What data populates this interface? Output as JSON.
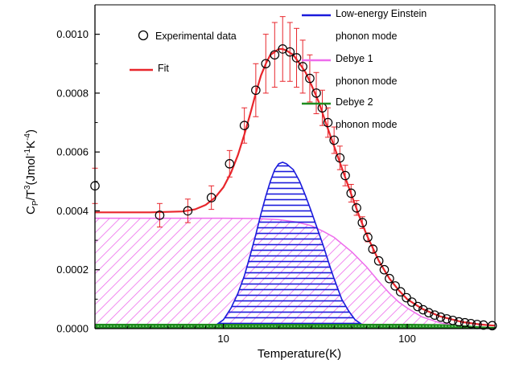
{
  "chart_data": {
    "type": "line",
    "xlabel": "Temperature(K)",
    "ylabel_parts": [
      "C",
      "P",
      "/T",
      "3",
      "(Jmol",
      "-1",
      "K",
      "-4",
      ")"
    ],
    "x_scale": "log",
    "xlim": [
      2,
      300
    ],
    "ylim": [
      0,
      0.0011
    ],
    "x_ticks": [
      {
        "value": 10,
        "label": "10"
      },
      {
        "value": 100,
        "label": "100"
      }
    ],
    "y_ticks": [
      {
        "value": 0.0,
        "label": "0.0000"
      },
      {
        "value": 0.0002,
        "label": "0.0002"
      },
      {
        "value": 0.0004,
        "label": "0.0004"
      },
      {
        "value": 0.0006,
        "label": "0.0006"
      },
      {
        "value": 0.0008,
        "label": "0.0008"
      },
      {
        "value": 0.001,
        "label": "0.0010"
      }
    ],
    "legend_left": [
      {
        "label": "Experimental data",
        "marker": "open-circle"
      },
      {
        "label": "Fit",
        "marker": "line",
        "color": "#e8262c"
      }
    ],
    "legend_right": [
      {
        "line1": "Low-energy Einstein",
        "line2": "phonon mode",
        "color": "#1a1adc"
      },
      {
        "line1": "Debye 1",
        "line2": "phonon mode",
        "color": "#ee6cec"
      },
      {
        "line1": "Debye 2",
        "line2": "phonon mode",
        "color": "#1f8c1f"
      }
    ],
    "colors": {
      "fit": "#e8262c",
      "einstein": "#1a1adc",
      "debye1": "#ee6cec",
      "debye2": "#1f8c1f",
      "data": "#000000"
    },
    "series": [
      {
        "name": "Experimental data",
        "kind": "scatter",
        "points": [
          [
            2.0,
            0.000485,
            6e-05
          ],
          [
            4.5,
            0.000385,
            4e-05
          ],
          [
            6.4,
            0.0004,
            4e-05
          ],
          [
            8.6,
            0.000445,
            4e-05
          ],
          [
            10.8,
            0.00056,
            4.5e-05
          ],
          [
            13.0,
            0.00069,
            6e-05
          ],
          [
            15.0,
            0.00081,
            9e-05
          ],
          [
            17.0,
            0.0009,
            0.0001
          ],
          [
            19.0,
            0.00093,
            0.00011
          ],
          [
            21.0,
            0.00095,
            0.00011
          ],
          [
            23.0,
            0.00094,
            0.0001
          ],
          [
            25.0,
            0.00092,
            0.0001
          ],
          [
            27.0,
            0.00089,
            9e-05
          ],
          [
            29.5,
            0.00085,
            8e-05
          ],
          [
            32.0,
            0.0008,
            7e-05
          ],
          [
            34.5,
            0.00075,
            6e-05
          ],
          [
            37.0,
            0.0007,
            5e-05
          ],
          [
            40.0,
            0.00064,
            4.5e-05
          ],
          [
            43.0,
            0.00058,
            4e-05
          ],
          [
            46.0,
            0.00052,
            3.5e-05
          ],
          [
            49.5,
            0.00046,
            3e-05
          ],
          [
            53.0,
            0.00041,
            2.5e-05
          ],
          [
            57.0,
            0.00036,
            2e-05
          ],
          [
            61.0,
            0.00031,
            1.5e-05
          ],
          [
            65.0,
            0.00027,
            1.2e-05
          ],
          [
            70.0,
            0.00023,
            0
          ],
          [
            75.0,
            0.0002,
            0
          ],
          [
            80.0,
            0.00017,
            0
          ],
          [
            86.0,
            0.000145,
            0
          ],
          [
            92.0,
            0.000125,
            0
          ],
          [
            99.0,
            0.000105,
            0
          ],
          [
            106.0,
            9e-05,
            0
          ],
          [
            114.0,
            7.5e-05,
            0
          ],
          [
            122.0,
            6.4e-05,
            0
          ],
          [
            131.0,
            5.4e-05,
            0
          ],
          [
            141.0,
            4.6e-05,
            0
          ],
          [
            152.0,
            3.9e-05,
            0
          ],
          [
            164.0,
            3.3e-05,
            0
          ],
          [
            177.0,
            2.8e-05,
            0
          ],
          [
            191.0,
            2.3e-05,
            0
          ],
          [
            206.0,
            2e-05,
            0
          ],
          [
            222.0,
            1.7e-05,
            0
          ],
          [
            240.0,
            1.4e-05,
            0
          ],
          [
            260.0,
            1.2e-05,
            0
          ],
          [
            290.0,
            1e-05,
            0
          ]
        ]
      },
      {
        "name": "Fit",
        "kind": "line",
        "points": [
          [
            2.0,
            0.000395
          ],
          [
            4.0,
            0.000395
          ],
          [
            6.0,
            0.000398
          ],
          [
            7.0,
            0.000405
          ],
          [
            8.0,
            0.00042
          ],
          [
            9.0,
            0.000445
          ],
          [
            10.0,
            0.00048
          ],
          [
            11.0,
            0.00053
          ],
          [
            12.0,
            0.00059
          ],
          [
            13.0,
            0.00066
          ],
          [
            14.0,
            0.00073
          ],
          [
            15.0,
            0.0008
          ],
          [
            16.0,
            0.00086
          ],
          [
            17.0,
            0.0009
          ],
          [
            18.0,
            0.00093
          ],
          [
            19.0,
            0.00094
          ],
          [
            20.0,
            0.00095
          ],
          [
            21.0,
            0.00095
          ],
          [
            22.0,
            0.000945
          ],
          [
            24.0,
            0.00093
          ],
          [
            26.0,
            0.0009
          ],
          [
            28.0,
            0.00087
          ],
          [
            30.0,
            0.00083
          ],
          [
            33.0,
            0.00077
          ],
          [
            36.0,
            0.0007
          ],
          [
            40.0,
            0.00062
          ],
          [
            45.0,
            0.00053
          ],
          [
            50.0,
            0.00045
          ],
          [
            55.0,
            0.00038
          ],
          [
            60.0,
            0.00032
          ],
          [
            70.0,
            0.00023
          ],
          [
            80.0,
            0.00017
          ],
          [
            90.0,
            0.00013
          ],
          [
            100.0,
            0.0001
          ],
          [
            120.0,
            6.8e-05
          ],
          [
            150.0,
            4.2e-05
          ],
          [
            200.0,
            2.2e-05
          ],
          [
            250.0,
            1.4e-05
          ],
          [
            300.0,
            1e-05
          ]
        ]
      },
      {
        "name": "Low-energy Einstein phonon mode",
        "kind": "area",
        "points": [
          [
            8.0,
            0.0
          ],
          [
            9.0,
            1e-05
          ],
          [
            10.0,
            3e-05
          ],
          [
            11.0,
            7e-05
          ],
          [
            12.0,
            0.00012
          ],
          [
            13.0,
            0.00018
          ],
          [
            14.0,
            0.00025
          ],
          [
            15.0,
            0.00032
          ],
          [
            16.0,
            0.00039
          ],
          [
            17.0,
            0.00045
          ],
          [
            18.0,
            0.0005
          ],
          [
            19.0,
            0.00054
          ],
          [
            20.0,
            0.00056
          ],
          [
            21.0,
            0.000565
          ],
          [
            22.0,
            0.00056
          ],
          [
            24.0,
            0.00054
          ],
          [
            26.0,
            0.0005
          ],
          [
            28.0,
            0.00045
          ],
          [
            30.0,
            0.0004
          ],
          [
            32.0,
            0.00035
          ],
          [
            35.0,
            0.00028
          ],
          [
            38.0,
            0.00021
          ],
          [
            40.0,
            0.00017
          ],
          [
            44.0,
            0.0001
          ],
          [
            48.0,
            6e-05
          ],
          [
            52.0,
            3e-05
          ],
          [
            58.0,
            1e-05
          ],
          [
            65.0,
            0.0
          ]
        ]
      },
      {
        "name": "Debye 1 phonon mode",
        "kind": "area",
        "points": [
          [
            2.0,
            0.000375
          ],
          [
            5.0,
            0.000375
          ],
          [
            10.0,
            0.000375
          ],
          [
            15.0,
            0.000374
          ],
          [
            20.0,
            0.00037
          ],
          [
            25.0,
            0.000362
          ],
          [
            30.0,
            0.00035
          ],
          [
            35.0,
            0.00033
          ],
          [
            40.0,
            0.00031
          ],
          [
            50.0,
            0.00026
          ],
          [
            60.0,
            0.00021
          ],
          [
            70.0,
            0.00016
          ],
          [
            80.0,
            0.00012
          ],
          [
            90.0,
            9e-05
          ],
          [
            100.0,
            7e-05
          ],
          [
            120.0,
            4e-05
          ],
          [
            150.0,
            2e-05
          ],
          [
            200.0,
            8e-06
          ],
          [
            250.0,
            0.0
          ]
        ]
      },
      {
        "name": "Debye 2 phonon mode",
        "kind": "area",
        "points": [
          [
            2.0,
            1.5e-05
          ],
          [
            100.0,
            1.5e-05
          ],
          [
            150.0,
            1.4e-05
          ],
          [
            200.0,
            1e-05
          ],
          [
            250.0,
            6e-06
          ],
          [
            300.0,
            4e-06
          ]
        ]
      }
    ]
  }
}
